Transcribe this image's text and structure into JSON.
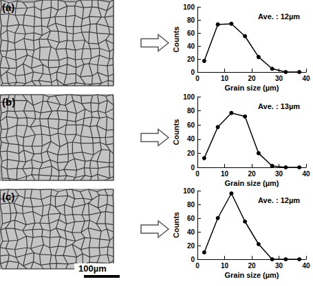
{
  "panels": [
    "(a)",
    "(b)",
    "(c)"
  ],
  "scale_bar": "100µm",
  "chart_data": [
    {
      "type": "line",
      "x_label": "Grain size (µm)",
      "y_label": "Counts",
      "annotations": [
        "Ave. : 12µm"
      ],
      "x": [
        2.5,
        7.5,
        12.5,
        17.5,
        22.5,
        27.5,
        32.5,
        37.5
      ],
      "values": [
        17,
        73,
        74,
        55,
        23,
        5,
        0,
        0
      ],
      "color": "#000000",
      "marker": "circle",
      "xlim": [
        0,
        40
      ],
      "xticks": [
        0,
        10,
        20,
        30,
        40
      ],
      "ylim": [
        0,
        100
      ],
      "yticks": [
        0,
        20,
        40,
        60,
        80,
        100
      ],
      "grid": false
    },
    {
      "type": "line",
      "x_label": "Grain size (µm)",
      "y_label": "Counts",
      "annotations": [
        "Ave. : 13µm"
      ],
      "x": [
        2.5,
        7.5,
        12.5,
        17.5,
        22.5,
        27.5,
        32.5,
        37.5
      ],
      "values": [
        13,
        57,
        77,
        72,
        20,
        2,
        0,
        0
      ],
      "color": "#000000",
      "marker": "circle",
      "xlim": [
        0,
        40
      ],
      "xticks": [
        0,
        10,
        20,
        30,
        40
      ],
      "ylim": [
        0,
        100
      ],
      "yticks": [
        0,
        20,
        40,
        60,
        80,
        100
      ],
      "grid": false
    },
    {
      "type": "line",
      "x_label": "Grain size (µm)",
      "y_label": "Counts",
      "annotations": [
        "Ave. : 12µm"
      ],
      "x": [
        2.5,
        7.5,
        12.5,
        17.5,
        22.5,
        27.5,
        32.5,
        37.5
      ],
      "values": [
        10,
        60,
        96,
        55,
        22,
        0,
        0,
        0
      ],
      "color": "#000000",
      "marker": "circle",
      "xlim": [
        0,
        40
      ],
      "xticks": [
        0,
        10,
        20,
        30,
        40
      ],
      "ylim": [
        0,
        100
      ],
      "yticks": [
        0,
        20,
        40,
        60,
        80,
        100
      ],
      "grid": false
    }
  ]
}
